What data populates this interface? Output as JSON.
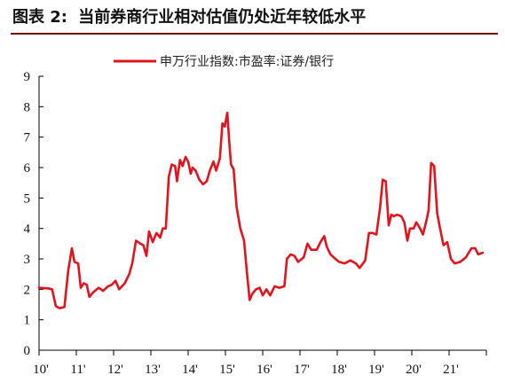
{
  "figure": {
    "label": "图表 2:",
    "caption": "当前券商行业相对估值仍处近年较低水平"
  },
  "colors": {
    "series": "#e0141e",
    "axis": "#000000",
    "title_rule": "#7a0f14"
  },
  "chart_data": {
    "type": "line",
    "xlabel": "",
    "ylabel": "",
    "ylim": [
      0,
      9
    ],
    "yticks": [
      0,
      1,
      2,
      3,
      4,
      5,
      6,
      7,
      8,
      9
    ],
    "xlim": [
      2010,
      2022
    ],
    "xtick_labels": [
      "10'",
      "11'",
      "12'",
      "13'",
      "14'",
      "15'",
      "16'",
      "17'",
      "18'",
      "19'",
      "20'",
      "21'"
    ],
    "grid": false,
    "legend": "top-center",
    "series": [
      {
        "name": "申万行业指数:市盈率:证券/银行",
        "points": [
          [
            2010.0,
            2.05
          ],
          [
            2010.25,
            2.03
          ],
          [
            2010.35,
            2.0
          ],
          [
            2010.45,
            1.45
          ],
          [
            2010.55,
            1.38
          ],
          [
            2010.68,
            1.42
          ],
          [
            2010.78,
            2.6
          ],
          [
            2010.88,
            3.35
          ],
          [
            2010.95,
            2.9
          ],
          [
            2011.05,
            2.85
          ],
          [
            2011.12,
            2.05
          ],
          [
            2011.2,
            2.2
          ],
          [
            2011.28,
            2.15
          ],
          [
            2011.35,
            1.75
          ],
          [
            2011.45,
            1.9
          ],
          [
            2011.6,
            2.05
          ],
          [
            2011.72,
            1.95
          ],
          [
            2011.85,
            2.1
          ],
          [
            2011.95,
            2.15
          ],
          [
            2012.05,
            2.28
          ],
          [
            2012.15,
            2.0
          ],
          [
            2012.3,
            2.2
          ],
          [
            2012.42,
            2.5
          ],
          [
            2012.5,
            2.85
          ],
          [
            2012.6,
            3.6
          ],
          [
            2012.72,
            3.5
          ],
          [
            2012.8,
            3.45
          ],
          [
            2012.88,
            3.1
          ],
          [
            2012.95,
            3.9
          ],
          [
            2013.05,
            3.55
          ],
          [
            2013.15,
            3.85
          ],
          [
            2013.25,
            3.7
          ],
          [
            2013.32,
            4.0
          ],
          [
            2013.4,
            4.0
          ],
          [
            2013.48,
            5.7
          ],
          [
            2013.56,
            6.1
          ],
          [
            2013.65,
            6.05
          ],
          [
            2013.7,
            5.55
          ],
          [
            2013.78,
            6.25
          ],
          [
            2013.85,
            6.05
          ],
          [
            2013.93,
            6.35
          ],
          [
            2014.0,
            6.2
          ],
          [
            2014.07,
            5.8
          ],
          [
            2014.12,
            6.0
          ],
          [
            2014.2,
            5.9
          ],
          [
            2014.3,
            5.6
          ],
          [
            2014.4,
            5.45
          ],
          [
            2014.5,
            5.55
          ],
          [
            2014.58,
            5.9
          ],
          [
            2014.68,
            6.2
          ],
          [
            2014.75,
            5.9
          ],
          [
            2014.85,
            6.3
          ],
          [
            2014.92,
            7.45
          ],
          [
            2014.98,
            7.35
          ],
          [
            2015.05,
            7.8
          ],
          [
            2015.1,
            6.9
          ],
          [
            2015.15,
            6.1
          ],
          [
            2015.22,
            5.95
          ],
          [
            2015.3,
            4.7
          ],
          [
            2015.4,
            4.0
          ],
          [
            2015.5,
            3.6
          ],
          [
            2015.58,
            2.5
          ],
          [
            2015.65,
            1.65
          ],
          [
            2015.72,
            1.85
          ],
          [
            2015.82,
            2.0
          ],
          [
            2015.92,
            2.05
          ],
          [
            2016.0,
            1.8
          ],
          [
            2016.1,
            2.0
          ],
          [
            2016.2,
            1.8
          ],
          [
            2016.32,
            2.1
          ],
          [
            2016.45,
            2.05
          ],
          [
            2016.58,
            2.1
          ],
          [
            2016.65,
            3.0
          ],
          [
            2016.75,
            3.15
          ],
          [
            2016.85,
            3.1
          ],
          [
            2016.95,
            2.9
          ],
          [
            2017.1,
            3.05
          ],
          [
            2017.2,
            3.5
          ],
          [
            2017.3,
            3.3
          ],
          [
            2017.45,
            3.3
          ],
          [
            2017.55,
            3.55
          ],
          [
            2017.65,
            3.75
          ],
          [
            2017.72,
            3.4
          ],
          [
            2017.82,
            3.15
          ],
          [
            2017.95,
            3.0
          ],
          [
            2018.05,
            2.9
          ],
          [
            2018.2,
            2.85
          ],
          [
            2018.35,
            2.95
          ],
          [
            2018.5,
            2.85
          ],
          [
            2018.6,
            2.7
          ],
          [
            2018.75,
            2.95
          ],
          [
            2018.85,
            3.85
          ],
          [
            2018.95,
            3.85
          ],
          [
            2019.05,
            3.8
          ],
          [
            2019.15,
            4.7
          ],
          [
            2019.22,
            5.6
          ],
          [
            2019.3,
            5.55
          ],
          [
            2019.38,
            4.1
          ],
          [
            2019.45,
            4.45
          ],
          [
            2019.52,
            4.4
          ],
          [
            2019.6,
            4.45
          ],
          [
            2019.72,
            4.4
          ],
          [
            2019.8,
            4.2
          ],
          [
            2019.88,
            3.6
          ],
          [
            2019.95,
            4.0
          ],
          [
            2020.05,
            4.0
          ],
          [
            2020.12,
            4.2
          ],
          [
            2020.2,
            4.05
          ],
          [
            2020.3,
            3.8
          ],
          [
            2020.4,
            4.3
          ],
          [
            2020.45,
            4.6
          ],
          [
            2020.52,
            6.15
          ],
          [
            2020.6,
            6.05
          ],
          [
            2020.68,
            4.5
          ],
          [
            2020.75,
            4.05
          ],
          [
            2020.85,
            3.45
          ],
          [
            2020.95,
            3.55
          ],
          [
            2021.05,
            3.0
          ],
          [
            2021.15,
            2.85
          ],
          [
            2021.3,
            2.9
          ],
          [
            2021.45,
            3.05
          ],
          [
            2021.6,
            3.35
          ],
          [
            2021.7,
            3.35
          ],
          [
            2021.78,
            3.15
          ],
          [
            2021.9,
            3.2
          ]
        ]
      }
    ]
  }
}
